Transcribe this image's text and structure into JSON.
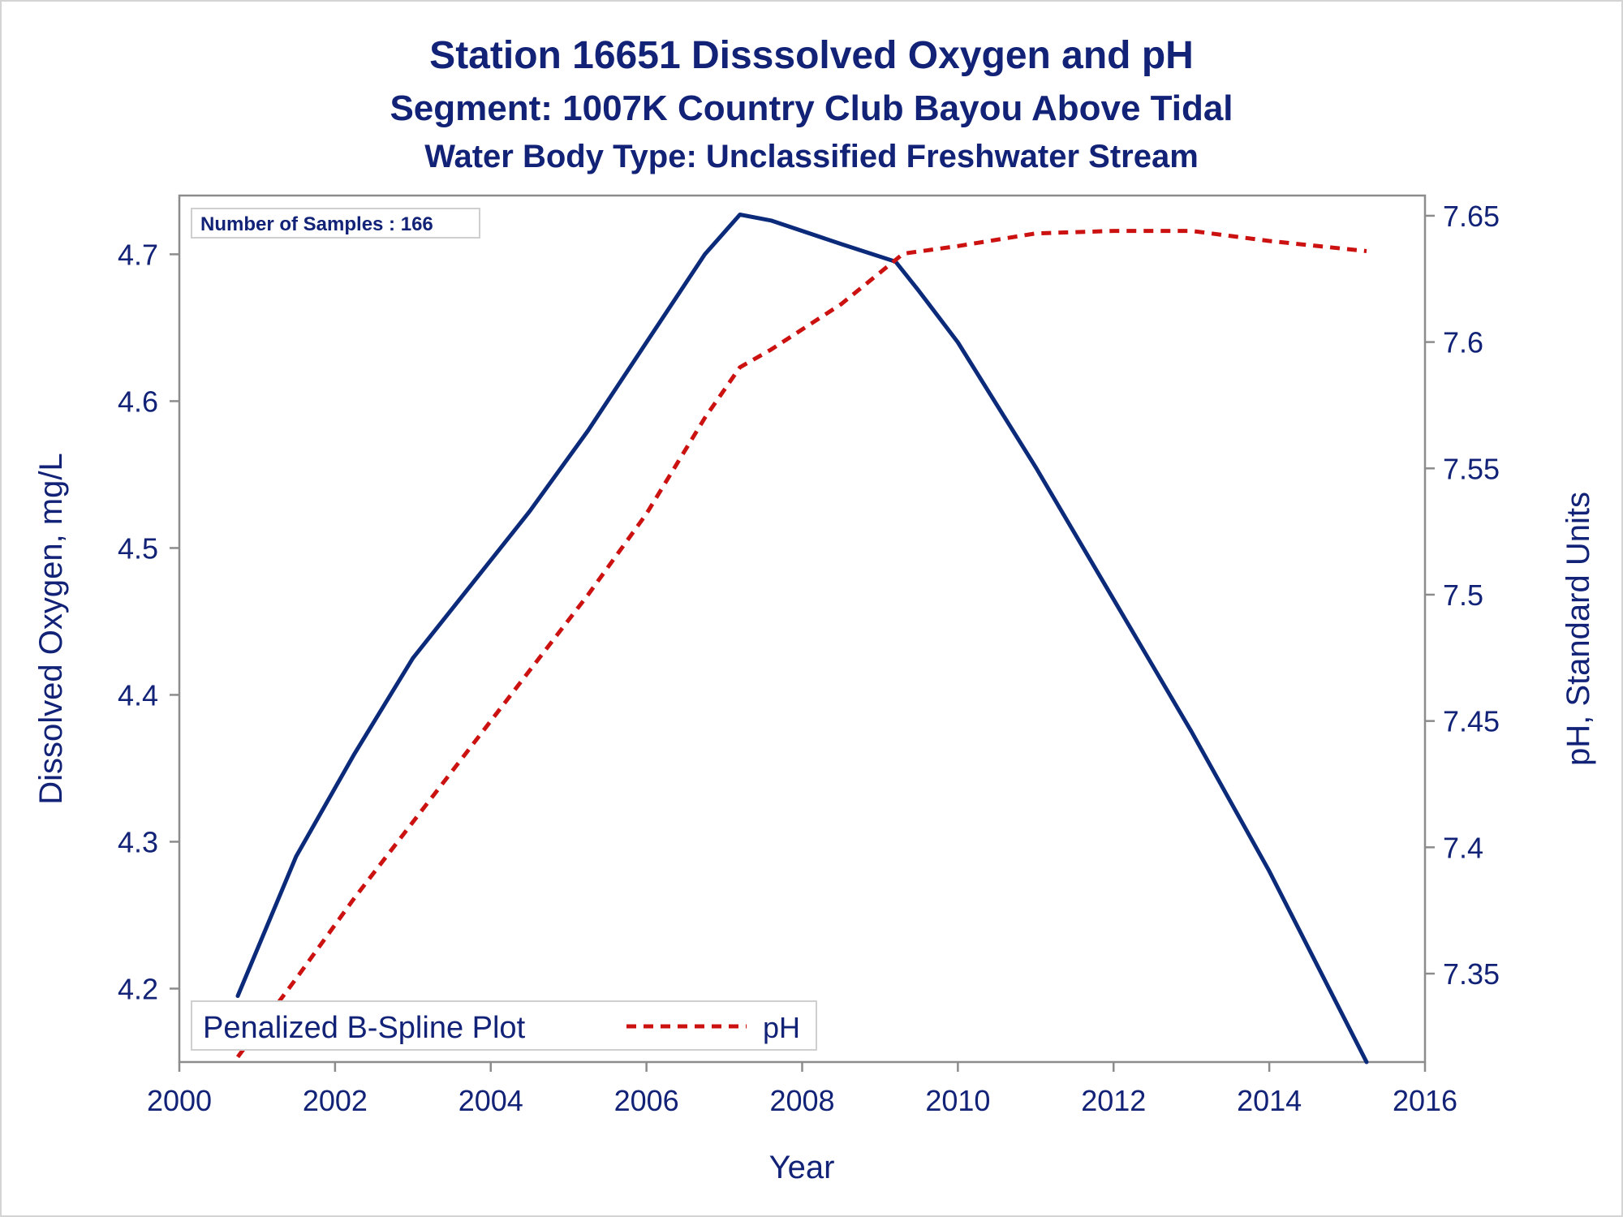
{
  "titles": {
    "line1": "Station 16651   Disssolved Oxygen and pH",
    "line2": "Segment: 1007K  Country Club Bayou Above Tidal",
    "line3": "Water Body Type: Unclassified Freshwater Stream"
  },
  "inset": {
    "samples_label": "Number of Samples : 166"
  },
  "legend": {
    "title": "Penalized B-Spline Plot",
    "series_label": "pH"
  },
  "colors": {
    "text": "#112277",
    "do_line": "#0b2a7a",
    "ph_line": "#cc1111",
    "axis": "#8c8c8c"
  },
  "chart_data": {
    "type": "line",
    "xlabel": "Year",
    "ylabel_left": "Dissolved Oxygen, mg/L",
    "ylabel_right": "pH, Standard Units",
    "xlim": [
      2000,
      2016
    ],
    "ylim_left": [
      4.15,
      4.74
    ],
    "ylim_right": [
      7.315,
      7.658
    ],
    "x_ticks": [
      2000,
      2002,
      2004,
      2006,
      2008,
      2010,
      2012,
      2014,
      2016
    ],
    "y_ticks_left": [
      4.2,
      4.3,
      4.4,
      4.5,
      4.6,
      4.7
    ],
    "y_ticks_right": [
      7.35,
      7.4,
      7.45,
      7.5,
      7.55,
      7.6,
      7.65
    ],
    "series": [
      {
        "axis": "left",
        "style": "solid",
        "x": [
          2000.75,
          2001.5,
          2002.25,
          2003,
          2003.75,
          2004.5,
          2005.25,
          2006,
          2006.75,
          2007.2,
          2007.6,
          2008.5,
          2009.2,
          2009.5,
          2010,
          2011,
          2012,
          2013,
          2014,
          2015.25
        ],
        "values": [
          4.195,
          4.29,
          4.36,
          4.425,
          4.475,
          4.525,
          4.58,
          4.64,
          4.7,
          4.727,
          4.723,
          4.707,
          4.695,
          4.675,
          4.64,
          4.555,
          4.465,
          4.375,
          4.28,
          4.15
        ]
      },
      {
        "name": "pH",
        "axis": "right",
        "style": "dashed",
        "x": [
          2000.75,
          2001.5,
          2002.25,
          2003,
          2003.75,
          2004.5,
          2005.25,
          2006,
          2006.75,
          2007.2,
          2007.6,
          2008.5,
          2009.3,
          2010,
          2011,
          2012,
          2013,
          2014,
          2015.25
        ],
        "values": [
          7.317,
          7.348,
          7.38,
          7.41,
          7.44,
          7.47,
          7.5,
          7.532,
          7.57,
          7.59,
          7.597,
          7.615,
          7.635,
          7.638,
          7.643,
          7.644,
          7.644,
          7.64,
          7.636
        ]
      }
    ]
  }
}
